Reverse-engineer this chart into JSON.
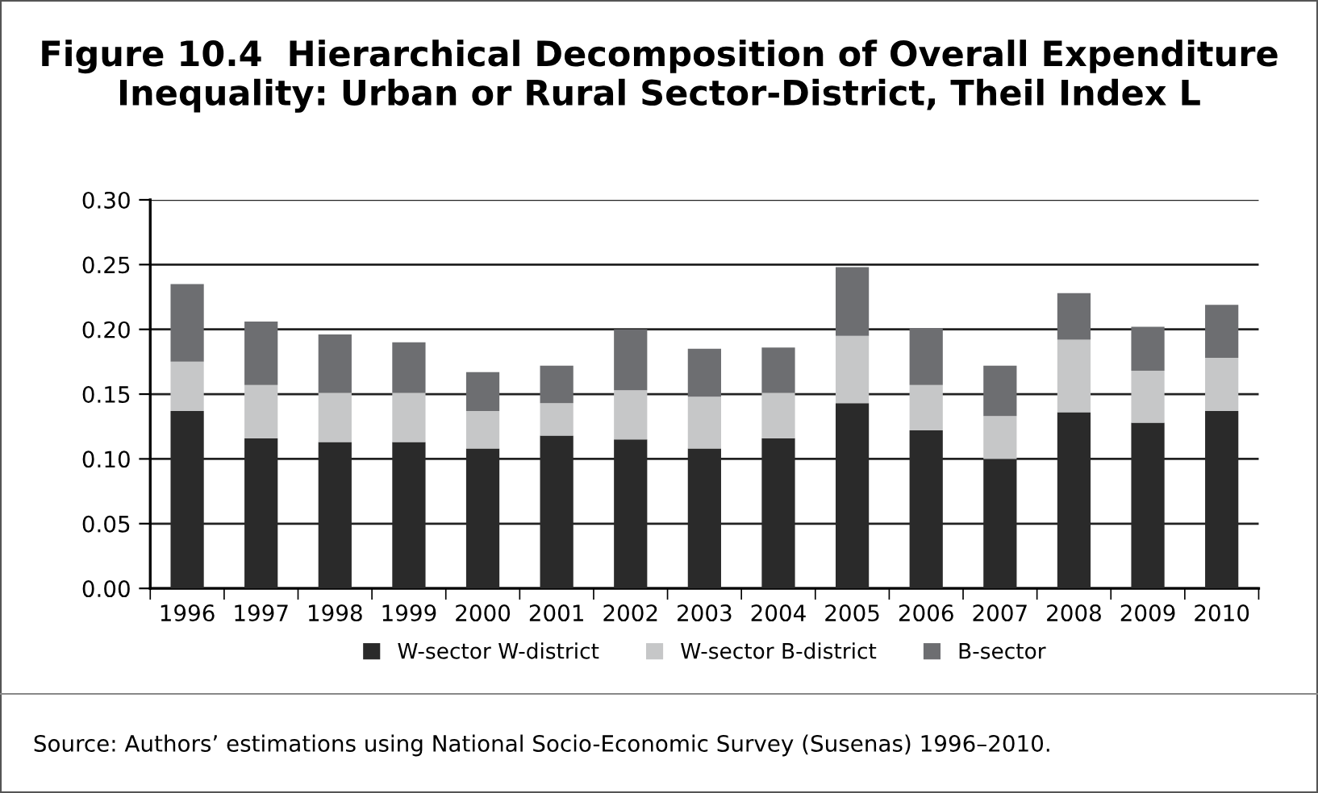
{
  "chart_data": {
    "type": "bar",
    "title": "Figure 10.4  Hierarchical Decomposition of Overall Expenditure\nInequality: Urban or Rural Sector-District, Theil Index L",
    "categories": [
      "1996",
      "1997",
      "1998",
      "1999",
      "2000",
      "2001",
      "2002",
      "2003",
      "2004",
      "2005",
      "2006",
      "2007",
      "2008",
      "2009",
      "2010"
    ],
    "stacked": true,
    "series": [
      {
        "name": "W-sector W-district",
        "color": "#2a2a2a",
        "values": [
          0.137,
          0.116,
          0.113,
          0.113,
          0.108,
          0.118,
          0.115,
          0.108,
          0.116,
          0.143,
          0.122,
          0.1,
          0.136,
          0.128,
          0.137
        ]
      },
      {
        "name": "W-sector B-district",
        "color": "#c6c7c8",
        "values": [
          0.038,
          0.041,
          0.038,
          0.038,
          0.029,
          0.025,
          0.038,
          0.04,
          0.035,
          0.052,
          0.035,
          0.033,
          0.056,
          0.04,
          0.041
        ]
      },
      {
        "name": "B-sector",
        "color": "#6d6e71",
        "values": [
          0.06,
          0.049,
          0.045,
          0.039,
          0.03,
          0.029,
          0.047,
          0.037,
          0.035,
          0.053,
          0.044,
          0.039,
          0.036,
          0.034,
          0.041
        ]
      }
    ],
    "ylim": [
      0,
      0.3
    ],
    "yticks": [
      {
        "value": 0,
        "label": "0.00"
      },
      {
        "value": 0.05,
        "label": "0.05"
      },
      {
        "value": 0.1,
        "label": "0.10"
      },
      {
        "value": 0.15,
        "label": "0.15"
      },
      {
        "value": 0.2,
        "label": "0.20"
      },
      {
        "value": 0.25,
        "label": "0.25"
      },
      {
        "value": 0.3,
        "label": "0.30"
      }
    ],
    "grid": "y",
    "legend": "bottom",
    "annotations": [
      "Source: Authors’ estimations using National Socio-Economic Survey (Susenas) 1996–2010."
    ]
  }
}
